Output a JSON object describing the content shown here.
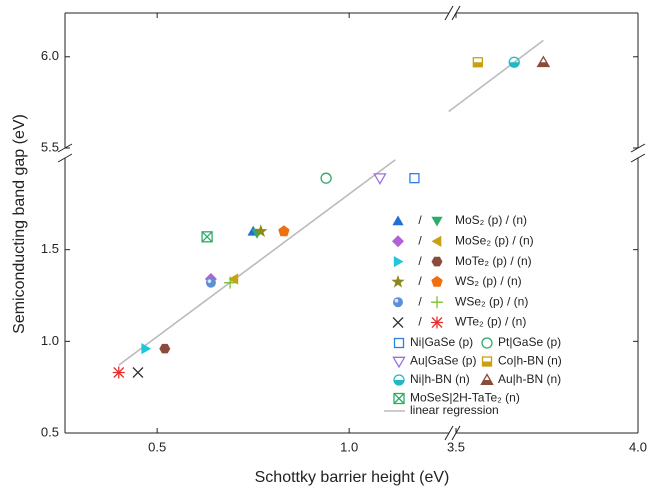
{
  "chart_data": {
    "type": "scatter",
    "x_label": "Schottky barrier height (eV)",
    "y_label": "Semiconducting band gap (eV)",
    "x_segments": [
      {
        "xlim": [
          0.26,
          1.26
        ],
        "xticks": [
          0.5,
          {
            "value": 1,
            "label": "1.0"
          }
        ]
      },
      {
        "xlim": [
          3.5,
          4.0
        ],
        "xticks": [
          3.5,
          {
            "value": 4,
            "label": "4.0"
          }
        ]
      }
    ],
    "y_segments": [
      {
        "ylim": [
          0.5,
          2.0
        ],
        "yticks": [
          0.5,
          {
            "value": 1,
            "label": "1.0"
          },
          1.5
        ]
      },
      {
        "ylim": [
          5.5,
          6.24
        ],
        "yticks": [
          5.5,
          {
            "value": 6,
            "label": "6.0"
          }
        ]
      }
    ],
    "legend_separator": "/",
    "series": [
      {
        "name": "MoS₂ (p) / (n)",
        "points": [
          {
            "x": 0.75,
            "y": 1.6,
            "marker": "triangle-up",
            "color": "#1f6fd6"
          },
          {
            "x": 0.76,
            "y": 1.59,
            "marker": "triangle-down",
            "color": "#2eaa6a"
          }
        ]
      },
      {
        "name": "MoSe₂ (p) / (n)",
        "points": [
          {
            "x": 0.64,
            "y": 1.34,
            "marker": "diamond",
            "color": "#b35fd6"
          },
          {
            "x": 0.7,
            "y": 1.34,
            "marker": "triangle-left",
            "color": "#c9a012"
          }
        ]
      },
      {
        "name": "MoTe₂ (p) / (n)",
        "points": [
          {
            "x": 0.47,
            "y": 0.96,
            "marker": "triangle-right",
            "color": "#1fc8d8"
          },
          {
            "x": 0.52,
            "y": 0.96,
            "marker": "hexagon",
            "color": "#8b4a3a"
          }
        ]
      },
      {
        "name": "WS₂ (p) / (n)",
        "points": [
          {
            "x": 0.77,
            "y": 1.6,
            "marker": "star",
            "color": "#8a8a1a"
          },
          {
            "x": 0.83,
            "y": 1.6,
            "marker": "pentagon",
            "color": "#f07010"
          }
        ]
      },
      {
        "name": "WSe₂ (p) / (n)",
        "points": [
          {
            "x": 0.64,
            "y": 1.32,
            "marker": "sphere",
            "color": "#5b8fd6"
          },
          {
            "x": 0.69,
            "y": 1.32,
            "marker": "plus",
            "color": "#7fc030"
          }
        ]
      },
      {
        "name": "WTe₂ (p) / (n)",
        "points": [
          {
            "x": 0.45,
            "y": 0.83,
            "marker": "cross",
            "color": "#333333"
          },
          {
            "x": 0.4,
            "y": 0.83,
            "marker": "asterisk",
            "color": "#e83030"
          }
        ]
      },
      {
        "name": "Ni|GaSe (p)",
        "points": [
          {
            "x": 1.17,
            "y": 1.89,
            "marker": "square-open",
            "color": "#2f7fe0"
          }
        ]
      },
      {
        "name": "Pt|GaSe (p)",
        "points": [
          {
            "x": 0.94,
            "y": 1.89,
            "marker": "circle-open",
            "color": "#2eaa6a"
          }
        ]
      },
      {
        "name": "Au|GaSe (p)",
        "points": [
          {
            "x": 1.08,
            "y": 1.89,
            "marker": "triangle-down-open",
            "color": "#a070e0"
          }
        ]
      },
      {
        "name": "Co|h-BN (n)",
        "points": [
          {
            "x": 3.56,
            "y": 5.97,
            "marker": "square-half",
            "color": "#c9a012"
          }
        ]
      },
      {
        "name": "Ni|h-BN (n)",
        "points": [
          {
            "x": 3.66,
            "y": 5.97,
            "marker": "circle-half",
            "color": "#1fb8c8"
          }
        ]
      },
      {
        "name": "Au|h-BN (n)",
        "points": [
          {
            "x": 3.74,
            "y": 5.97,
            "marker": "triangle-half",
            "color": "#8b4a3a"
          }
        ]
      },
      {
        "name": "MoSeS|2H-TaTe₂ (n)",
        "points": [
          {
            "x": 0.63,
            "y": 1.57,
            "marker": "square-x",
            "color": "#2eaa6a"
          }
        ]
      }
    ],
    "regression": {
      "name": "linear regression",
      "color": "#bbbbbb",
      "x": [
        0.4,
        1.12,
        null,
        3.48,
        3.74
      ],
      "values": [
        0.87,
        1.99,
        null,
        5.7,
        6.09
      ]
    }
  }
}
